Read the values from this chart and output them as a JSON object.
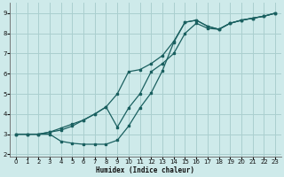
{
  "xlabel": "Humidex (Indice chaleur)",
  "bg_color": "#ceeaea",
  "line_color": "#1a6060",
  "grid_color": "#aacfcf",
  "xlim": [
    -0.5,
    23.5
  ],
  "ylim": [
    1.9,
    9.5
  ],
  "xticks": [
    0,
    1,
    2,
    3,
    4,
    5,
    6,
    7,
    8,
    9,
    10,
    11,
    12,
    13,
    14,
    15,
    16,
    17,
    18,
    19,
    20,
    21,
    22,
    23
  ],
  "yticks": [
    2,
    3,
    4,
    5,
    6,
    7,
    8,
    9
  ],
  "line1_x": [
    0,
    1,
    2,
    3,
    4,
    5,
    6,
    7,
    8,
    9,
    10,
    11,
    12,
    13,
    14,
    15,
    16,
    17,
    18,
    19,
    20,
    21,
    22,
    23
  ],
  "line1_y": [
    3.0,
    3.0,
    3.0,
    3.1,
    3.3,
    3.5,
    3.7,
    4.0,
    4.35,
    5.0,
    6.1,
    6.2,
    6.5,
    6.9,
    7.6,
    8.55,
    8.65,
    8.35,
    8.2,
    8.5,
    8.65,
    8.75,
    8.85,
    9.0
  ],
  "line2_x": [
    0,
    1,
    2,
    3,
    4,
    5,
    6,
    7,
    8,
    9,
    10,
    11,
    12,
    13,
    14,
    15,
    16,
    17,
    18,
    19,
    20,
    21,
    22,
    23
  ],
  "line2_y": [
    3.0,
    3.0,
    3.0,
    3.0,
    2.65,
    2.55,
    2.5,
    2.5,
    2.5,
    2.7,
    3.4,
    4.3,
    5.05,
    6.15,
    7.55,
    8.55,
    8.65,
    8.35,
    8.2,
    8.5,
    8.65,
    8.75,
    8.85,
    9.0
  ],
  "line3_x": [
    0,
    1,
    2,
    3,
    4,
    5,
    6,
    7,
    8,
    9,
    10,
    11,
    12,
    13,
    14,
    15,
    16,
    17,
    18,
    19,
    20,
    21,
    22,
    23
  ],
  "line3_y": [
    3.0,
    3.0,
    3.0,
    3.1,
    3.2,
    3.4,
    3.7,
    4.0,
    4.35,
    3.35,
    4.3,
    5.0,
    6.1,
    6.5,
    7.0,
    8.0,
    8.5,
    8.25,
    8.2,
    8.5,
    8.65,
    8.75,
    8.85,
    9.0
  ]
}
